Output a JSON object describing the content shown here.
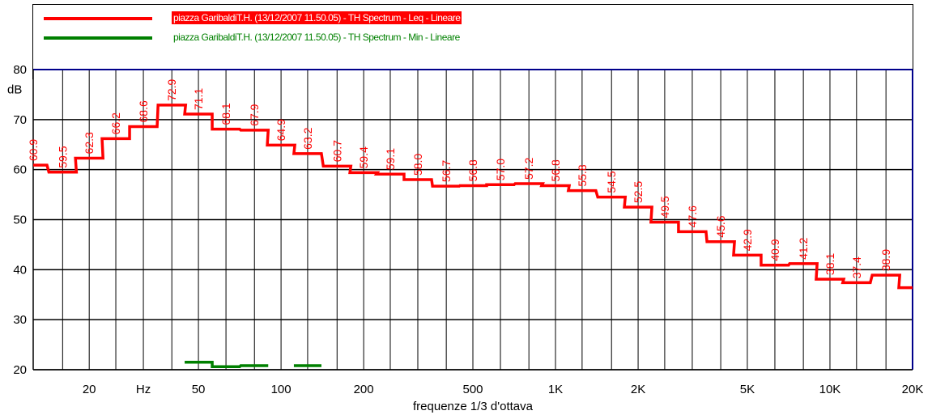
{
  "legend": {
    "items": [
      {
        "label": "piazza GaribaldiT.H. (13/12/2007 11.50.05) - TH Spectrum - Leq - Lineare",
        "color": "#ff0000",
        "highlighted": true
      },
      {
        "label": "piazza GaribaldiT.H. (13/12/2007 11.50.05) - TH Spectrum - Min - Lineare",
        "color": "#008000",
        "highlighted": false
      }
    ]
  },
  "chart_data": {
    "type": "line",
    "step": true,
    "x_scale": "log",
    "xlabel": "frequenze 1/3 d'ottava",
    "ylabel": "dB",
    "x_unit_label": "Hz",
    "ylim": [
      20,
      80
    ],
    "xlim": [
      12.5,
      20000
    ],
    "y_ticks": [
      "20",
      "30",
      "40",
      "50",
      "60",
      "70",
      "80"
    ],
    "x_tick_labels": [
      {
        "value": 20,
        "label": "20"
      },
      {
        "value": 50,
        "label": "50"
      },
      {
        "value": 100,
        "label": "100"
      },
      {
        "value": 200,
        "label": "200"
      },
      {
        "value": 500,
        "label": "500"
      },
      {
        "value": 1000,
        "label": "1K"
      },
      {
        "value": 2000,
        "label": "2K"
      },
      {
        "value": 5000,
        "label": "5K"
      },
      {
        "value": 10000,
        "label": "10K"
      },
      {
        "value": 20000,
        "label": "20K"
      }
    ],
    "minor_gridlines_hz": [
      16,
      25,
      31.5,
      40,
      63,
      80,
      125,
      160,
      250,
      315,
      400,
      630,
      800,
      1250,
      1600,
      2500,
      3150,
      4000,
      6300,
      8000,
      12500,
      16000
    ],
    "grid": true,
    "legend_position": "top",
    "series": [
      {
        "name": "piazza GaribaldiT.H. (13/12/2007 11.50.05) - TH Spectrum - Leq - Lineare",
        "color": "#ff0000",
        "x": [
          12.5,
          16,
          20,
          25,
          31.5,
          40,
          50,
          63,
          80,
          100,
          125,
          160,
          200,
          250,
          315,
          400,
          500,
          630,
          800,
          1000,
          1250,
          1600,
          2000,
          2500,
          3150,
          4000,
          5000,
          6300,
          8000,
          10000,
          12500,
          16000,
          20000
        ],
        "values": [
          60.9,
          59.5,
          62.3,
          66.2,
          68.6,
          72.9,
          71.1,
          68.1,
          67.9,
          64.9,
          63.2,
          60.7,
          59.4,
          59.1,
          58.0,
          56.7,
          56.8,
          57.0,
          57.2,
          56.8,
          55.8,
          54.5,
          52.5,
          49.5,
          47.6,
          45.6,
          42.9,
          40.9,
          41.2,
          38.1,
          37.4,
          38.9,
          36.4
        ],
        "labels": [
          "60.9",
          "59.5",
          "62.3",
          "66.2",
          "68.6",
          "72.9",
          "71.1",
          "68.1",
          "67.9",
          "64.9",
          "63.2",
          "60.7",
          "59.4",
          "59.1",
          "58.0",
          "56.7",
          "56.8",
          "57.0",
          "57.2",
          "56.8",
          "55.8",
          "54.5",
          "52.5",
          "49.5",
          "47.6",
          "45.6",
          "42.9",
          "40.9",
          "41.2",
          "38.1",
          "37.4",
          "38.9",
          "36.4"
        ]
      },
      {
        "name": "piazza GaribaldiT.H. (13/12/2007 11.50.05) - TH Spectrum - Min - Lineare",
        "color": "#008000",
        "x": [
          50,
          63,
          80,
          125
        ],
        "values": [
          21.5,
          20.6,
          20.8,
          20.8
        ],
        "segments": [
          [
            50,
            63,
            80
          ],
          [
            125
          ]
        ]
      }
    ]
  }
}
